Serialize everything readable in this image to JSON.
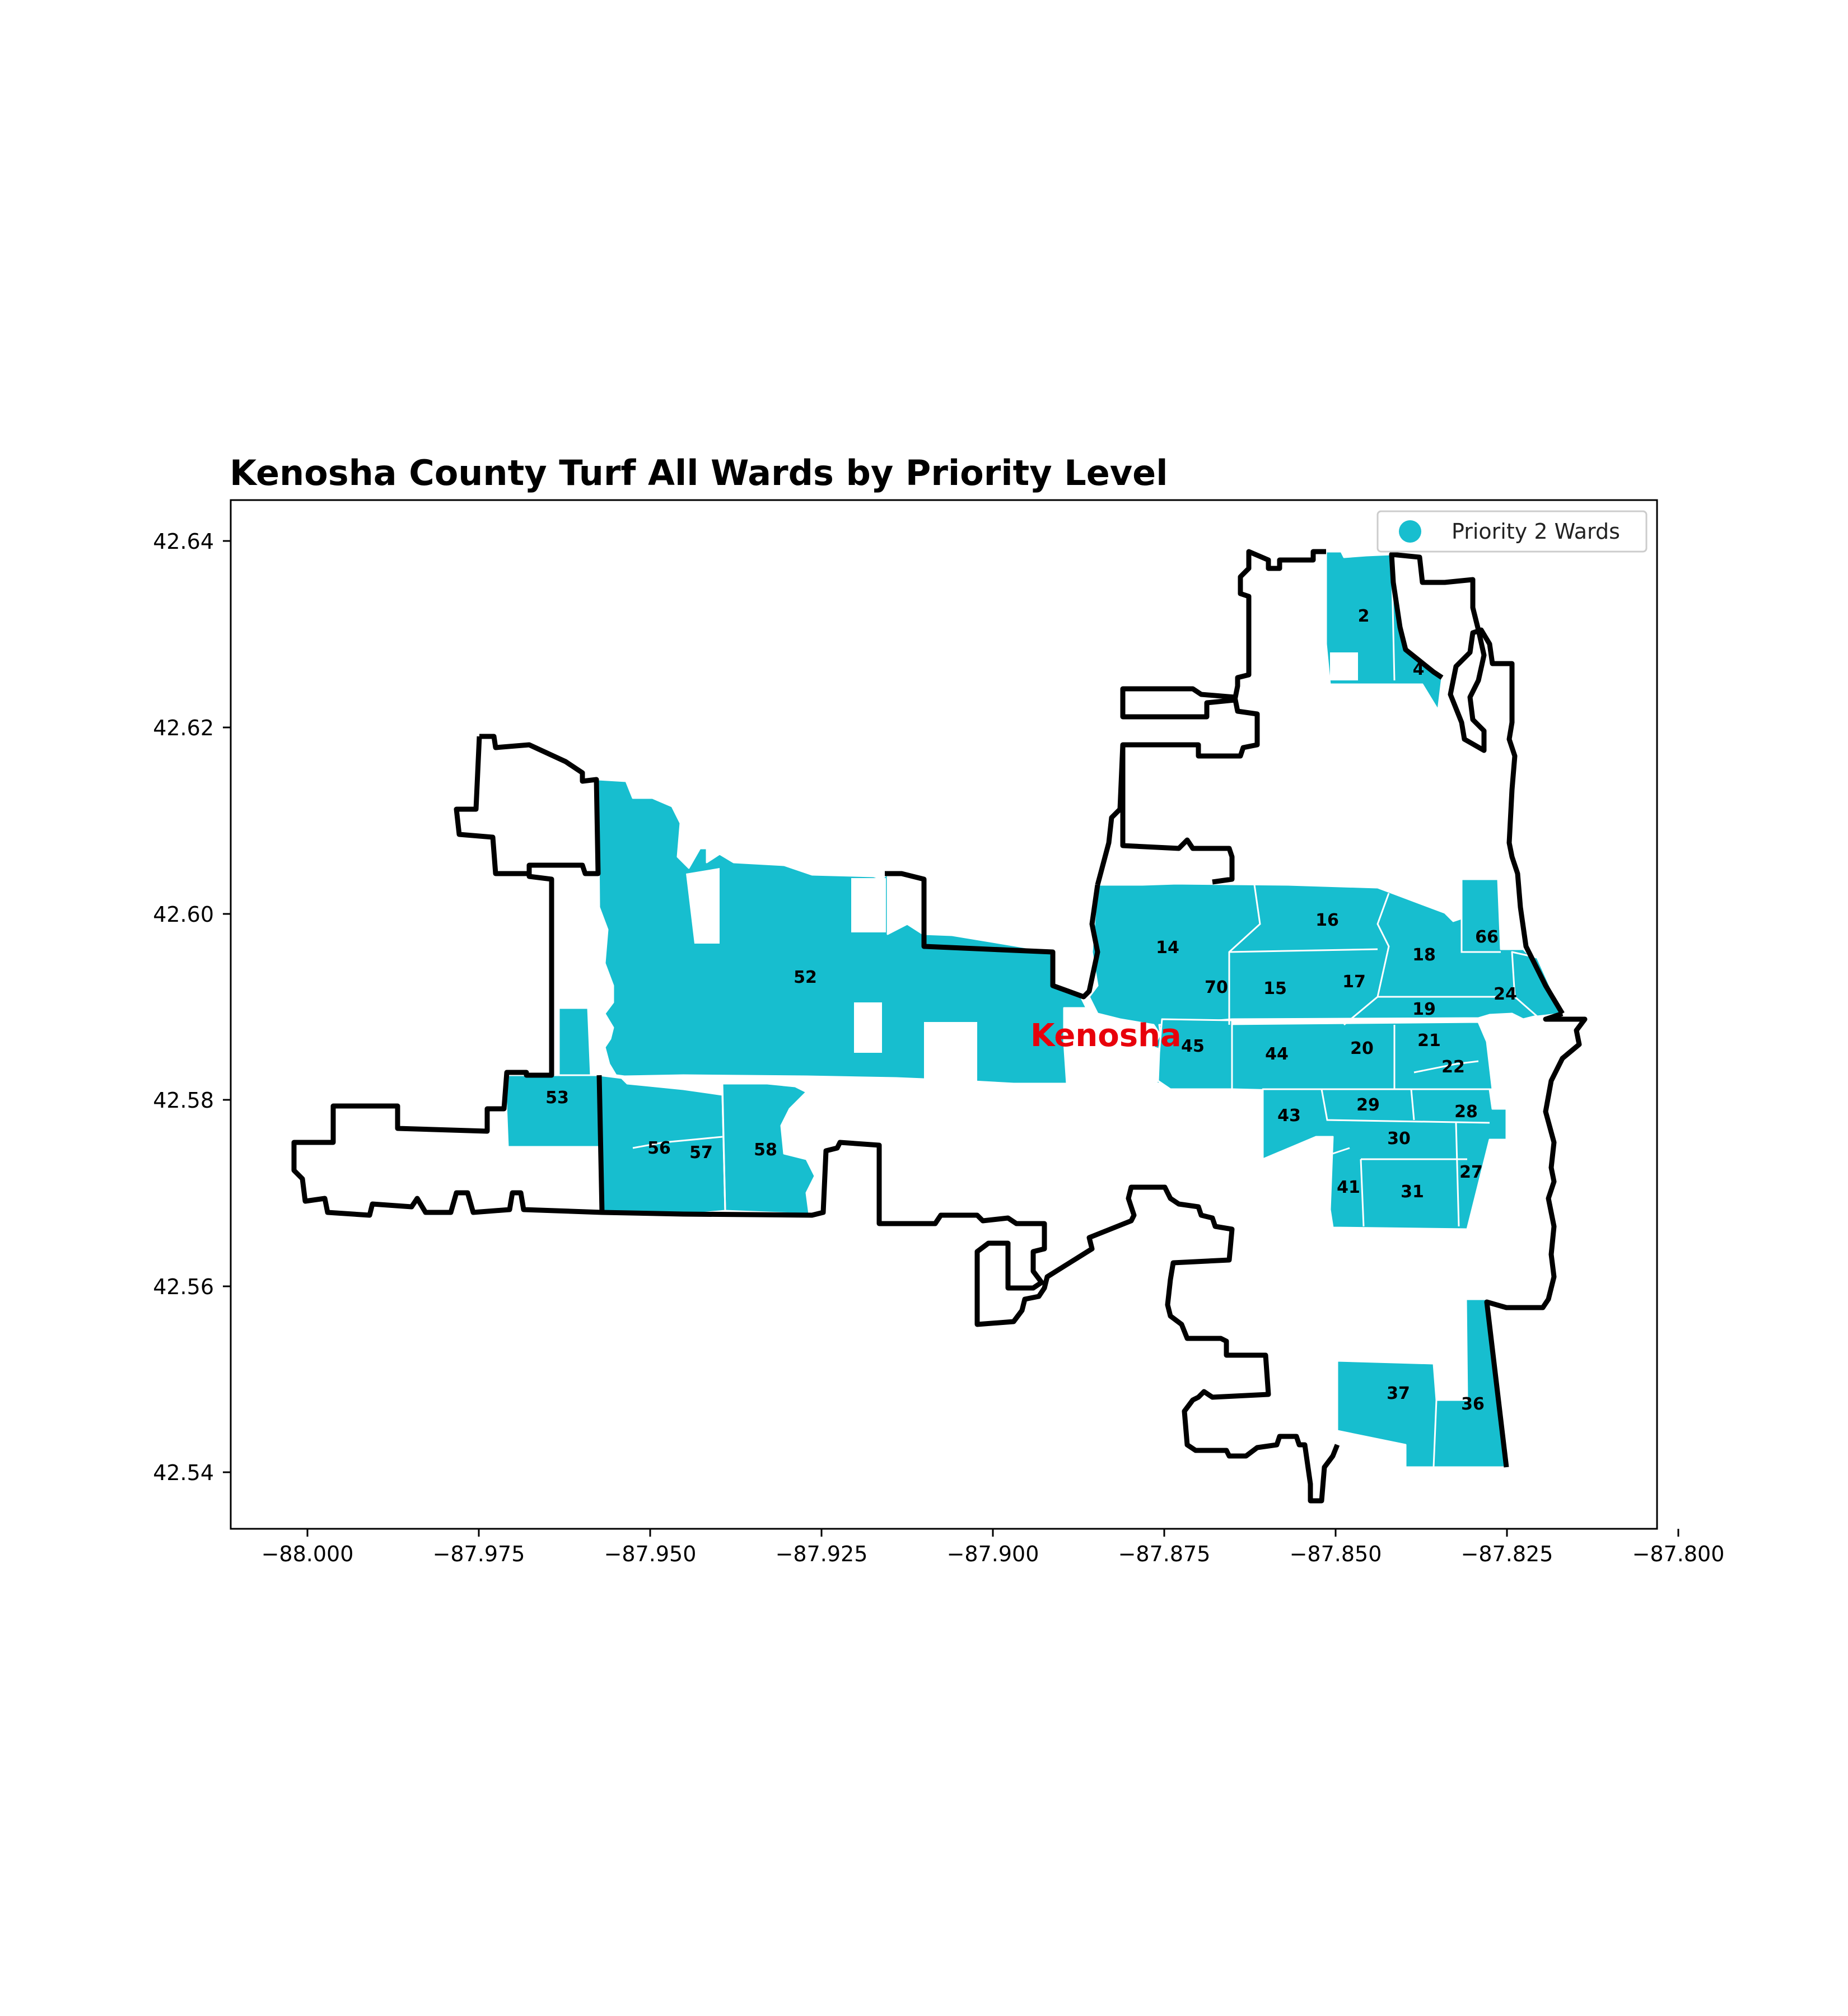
{
  "map": {
    "title": "Kenosha County Turf All Wards by Priority Level",
    "x_ticks": [
      "−88.000",
      "−87.975",
      "−87.950",
      "−87.925",
      "−87.900",
      "−87.875",
      "−87.850",
      "−87.825",
      "−87.800"
    ],
    "y_ticks": [
      "42.64",
      "42.62",
      "42.60",
      "42.58",
      "42.56",
      "42.54"
    ],
    "legend": {
      "label": "Priority 2 Wards",
      "marker_color": "#17becf"
    },
    "city_label": "Kenosha",
    "ward_fill_color": "#17becf",
    "city_label_color": "#e8000b",
    "ward_labels": [
      "2",
      "4",
      "52",
      "14",
      "16",
      "18",
      "66",
      "70",
      "15",
      "17",
      "19",
      "24",
      "45",
      "44",
      "20",
      "21",
      "22",
      "53",
      "29",
      "28",
      "43",
      "30",
      "56",
      "57",
      "58",
      "27",
      "41",
      "31",
      "37",
      "36"
    ]
  }
}
